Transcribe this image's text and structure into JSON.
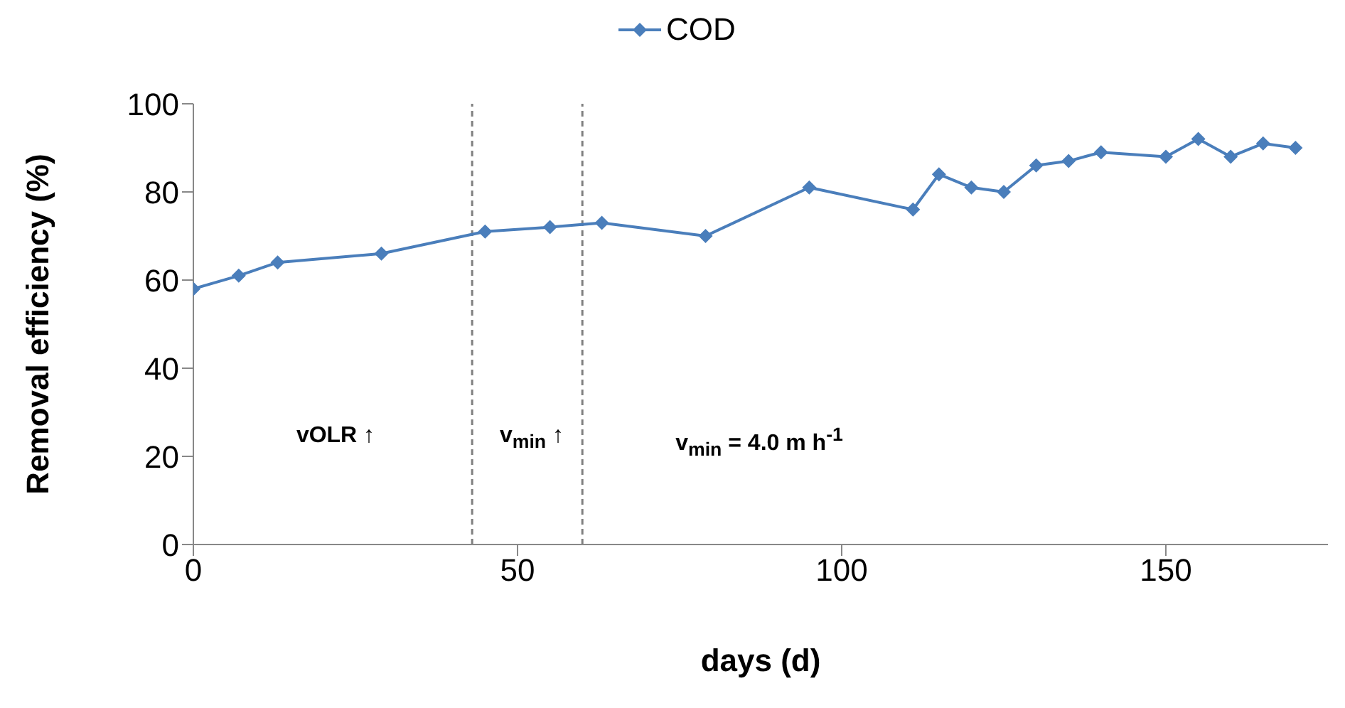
{
  "chart_data": {
    "type": "line",
    "xlabel": "days (d)",
    "ylabel": "Removal efficiency (%)",
    "x": [
      0,
      7,
      13,
      29,
      45,
      55,
      63,
      79,
      95,
      111,
      115,
      120,
      125,
      130,
      135,
      140,
      150,
      155,
      160,
      165,
      170
    ],
    "series": [
      {
        "name": "COD",
        "color": "#4a7ebb",
        "values": [
          58,
          61,
          64,
          66,
          71,
          72,
          73,
          70,
          81,
          76,
          84,
          81,
          80,
          86,
          87,
          89,
          88,
          92,
          88,
          91,
          90
        ]
      }
    ],
    "xlim": [
      0,
      175
    ],
    "xticks": [
      0,
      50,
      100,
      150
    ],
    "ylim": [
      0,
      100
    ],
    "yticks": [
      0,
      20,
      40,
      60,
      80,
      100
    ],
    "ref_lines": [
      {
        "axis": "x",
        "value": 43,
        "color": "#808080",
        "line_style": "dashed"
      },
      {
        "axis": "x",
        "value": 60,
        "color": "#808080",
        "line_style": "dashed"
      }
    ],
    "annotations": [
      "vOLR ↑",
      "v$_{min}$ ↑",
      "v$_{min}$ = 4.0 m h$^{-1}$"
    ],
    "legend": "top",
    "marker": "diamond",
    "line_style": "solid",
    "grid": false
  }
}
